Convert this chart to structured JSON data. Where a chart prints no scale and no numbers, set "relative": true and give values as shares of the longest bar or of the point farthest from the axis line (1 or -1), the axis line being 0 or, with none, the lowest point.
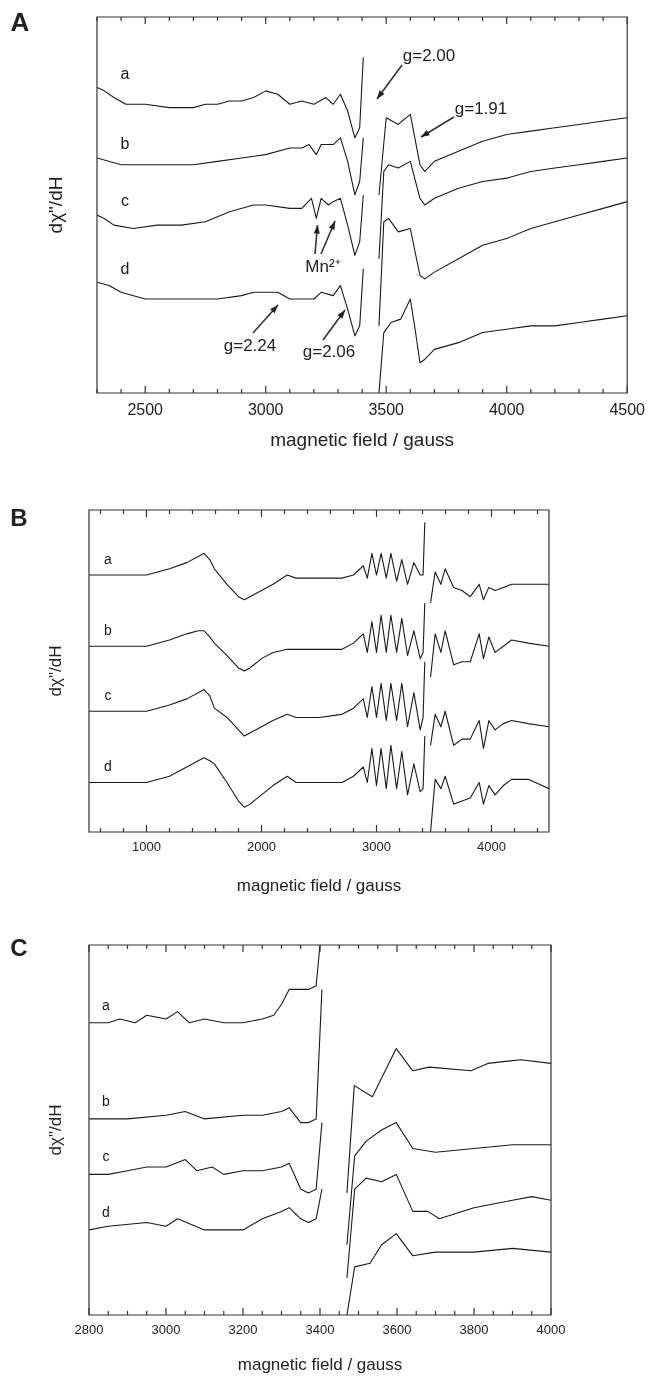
{
  "chart_data": [
    {
      "type": "line",
      "title": "A",
      "xlabel": "magnetic field / gauss",
      "ylabel": "dχ\"/dH",
      "relative": true,
      "xlim": [
        2300,
        4500
      ],
      "xticks": [
        {
          "value": 2300,
          "label": null
        },
        {
          "value": 2400,
          "label": null
        },
        2500,
        {
          "value": 2600,
          "label": null
        },
        {
          "value": 2700,
          "label": null
        },
        {
          "value": 2800,
          "label": null
        },
        {
          "value": 2900,
          "label": null
        },
        3000,
        {
          "value": 3100,
          "label": null
        },
        {
          "value": 3200,
          "label": null
        },
        {
          "value": 3300,
          "label": null
        },
        {
          "value": 3400,
          "label": null
        },
        3500,
        {
          "value": 3600,
          "label": null
        },
        {
          "value": 3700,
          "label": null
        },
        {
          "value": 3800,
          "label": null
        },
        {
          "value": 3900,
          "label": null
        },
        4000,
        {
          "value": 4100,
          "label": null
        },
        {
          "value": 4200,
          "label": null
        },
        {
          "value": 4300,
          "label": null
        },
        {
          "value": 4400,
          "label": null
        },
        4500
      ],
      "annotations": [
        "g=2.00",
        "g=1.91",
        "Mn²⁺",
        "g=2.24",
        "g=2.06"
      ],
      "series": [
        {
          "name": "a",
          "color": "#1a1a1a",
          "x": [
            2300,
            2330,
            2370,
            2420,
            2500,
            2600,
            2700,
            2750,
            2800,
            2850,
            2900,
            2950,
            3000,
            3050,
            3100,
            3150,
            3200,
            3250,
            3280,
            3310,
            3340,
            3370,
            3390,
            3405,
            3440,
            3470,
            3500,
            3550,
            3600,
            3640,
            3660,
            3700,
            3800,
            3900,
            4000,
            4100,
            4200,
            4300,
            4400,
            4500
          ],
          "values": [
            0.91,
            0.9,
            0.88,
            0.86,
            0.86,
            0.85,
            0.85,
            0.86,
            0.86,
            0.87,
            0.87,
            0.88,
            0.9,
            0.89,
            0.86,
            0.87,
            0.86,
            0.88,
            0.86,
            0.89,
            0.84,
            0.76,
            0.79,
            1.0,
            null,
            0.59,
            0.82,
            0.8,
            0.83,
            0.68,
            0.66,
            0.69,
            0.72,
            0.75,
            0.77,
            0.78,
            0.79,
            0.8,
            0.81,
            0.82
          ]
        },
        {
          "name": "b",
          "color": "#1a1a1a",
          "x": [
            2300,
            2400,
            2500,
            2600,
            2700,
            2800,
            2900,
            3000,
            3100,
            3150,
            3180,
            3210,
            3230,
            3280,
            3310,
            3340,
            3370,
            3390,
            3405,
            3440,
            3470,
            3490,
            3510,
            3550,
            3600,
            3640,
            3660,
            3700,
            3800,
            3900,
            4000,
            4100,
            4200,
            4300,
            4400,
            4500
          ],
          "values": [
            0.7,
            0.68,
            0.68,
            0.68,
            0.68,
            0.69,
            0.7,
            0.71,
            0.73,
            0.73,
            0.74,
            0.71,
            0.74,
            0.74,
            0.76,
            0.69,
            0.59,
            0.63,
            0.76,
            null,
            0.4,
            0.66,
            0.68,
            0.67,
            0.69,
            0.58,
            0.56,
            0.58,
            0.61,
            0.63,
            0.64,
            0.66,
            0.67,
            0.68,
            0.69,
            0.7
          ]
        },
        {
          "name": "c",
          "color": "#1a1a1a",
          "x": [
            2300,
            2330,
            2370,
            2450,
            2550,
            2650,
            2750,
            2850,
            2950,
            3000,
            3100,
            3150,
            3190,
            3210,
            3230,
            3260,
            3280,
            3310,
            3340,
            3370,
            3390,
            3405,
            3440,
            3470,
            3490,
            3510,
            3550,
            3600,
            3640,
            3660,
            3700,
            3800,
            3900,
            4000,
            4100,
            4200,
            4300,
            4400,
            4500
          ],
          "values": [
            0.53,
            0.52,
            0.5,
            0.49,
            0.5,
            0.5,
            0.51,
            0.54,
            0.56,
            0.56,
            0.55,
            0.55,
            0.58,
            0.52,
            0.58,
            0.56,
            0.57,
            0.58,
            0.5,
            0.41,
            0.45,
            0.59,
            null,
            0.2,
            0.51,
            0.52,
            0.48,
            0.49,
            0.35,
            0.34,
            0.36,
            0.4,
            0.44,
            0.46,
            0.49,
            0.51,
            0.53,
            0.55,
            0.57
          ]
        },
        {
          "name": "d",
          "color": "#1a1a1a",
          "x": [
            2300,
            2350,
            2400,
            2500,
            2600,
            2700,
            2800,
            2900,
            2950,
            3000,
            3050,
            3100,
            3150,
            3200,
            3230,
            3280,
            3310,
            3340,
            3370,
            3390,
            3405,
            3440,
            3470,
            3490,
            3520,
            3560,
            3600,
            3620,
            3640,
            3660,
            3700,
            3800,
            3900,
            4000,
            4100,
            4200,
            4300,
            4400,
            4500
          ],
          "values": [
            0.33,
            0.32,
            0.3,
            0.28,
            0.28,
            0.28,
            0.28,
            0.29,
            0.3,
            0.3,
            0.3,
            0.28,
            0.28,
            0.28,
            0.3,
            0.29,
            0.32,
            0.25,
            0.17,
            0.2,
            0.37,
            null,
            0,
            0.18,
            0.21,
            0.22,
            0.28,
            0.19,
            0.09,
            0.1,
            0.13,
            0.15,
            0.18,
            0.19,
            0.2,
            0.2,
            0.21,
            0.22,
            0.23
          ]
        }
      ]
    },
    {
      "type": "line",
      "title": "B",
      "xlabel": "magnetic field / gauss",
      "ylabel": "dχ\"/dH",
      "relative": true,
      "xlim": [
        500,
        4500
      ],
      "xticks": [
        {
          "value": 600,
          "label": null
        },
        {
          "value": 800,
          "label": null
        },
        1000,
        {
          "value": 1200,
          "label": null
        },
        {
          "value": 1400,
          "label": null
        },
        {
          "value": 1600,
          "label": null
        },
        {
          "value": 1800,
          "label": null
        },
        2000,
        {
          "value": 2200,
          "label": null
        },
        {
          "value": 2400,
          "label": null
        },
        {
          "value": 2600,
          "label": null
        },
        {
          "value": 2800,
          "label": null
        },
        3000,
        {
          "value": 3200,
          "label": null
        },
        {
          "value": 3400,
          "label": null
        },
        {
          "value": 3600,
          "label": null
        },
        {
          "value": 3800,
          "label": null
        },
        4000,
        {
          "value": 4200,
          "label": null
        },
        {
          "value": 4400,
          "label": null
        }
      ],
      "series": [
        {
          "name": "a",
          "color": "#1a1a1a",
          "x": [
            500,
            700,
            1000,
            1200,
            1350,
            1450,
            1500,
            1550,
            1590,
            1700,
            1800,
            1850,
            1900,
            2000,
            2100,
            2224,
            2300,
            2500,
            2700,
            2800,
            2885,
            2920,
            2960,
            3000,
            3040,
            3085,
            3125,
            3175,
            3220,
            3270,
            3325,
            3380,
            3405,
            3420,
            3440,
            3470,
            3510,
            3560,
            3597,
            3671,
            3743,
            3815,
            3893,
            3930,
            3977,
            4031,
            4103,
            4175,
            4320,
            4500
          ],
          "values": [
            0.83,
            0.83,
            0.83,
            0.85,
            0.87,
            0.89,
            0.9,
            0.88,
            0.85,
            0.8,
            0.76,
            0.75,
            0.76,
            0.78,
            0.8,
            0.83,
            0.82,
            0.82,
            0.82,
            0.83,
            0.86,
            0.82,
            0.9,
            0.83,
            0.9,
            0.82,
            0.9,
            0.81,
            0.88,
            0.8,
            0.87,
            0.83,
            0.83,
            1.0,
            null,
            0.74,
            0.84,
            0.8,
            0.85,
            0.79,
            0.78,
            0.76,
            0.8,
            0.75,
            0.79,
            0.78,
            0.79,
            0.8,
            0.8,
            0.8
          ]
        },
        {
          "name": "b",
          "color": "#1a1a1a",
          "x": [
            500,
            700,
            1000,
            1200,
            1350,
            1450,
            1500,
            1550,
            1590,
            1700,
            1800,
            1850,
            1900,
            2000,
            2100,
            2224,
            2300,
            2500,
            2700,
            2800,
            2885,
            2920,
            2960,
            3000,
            3040,
            3085,
            3125,
            3175,
            3220,
            3270,
            3325,
            3380,
            3405,
            3420,
            3440,
            3470,
            3510,
            3560,
            3597,
            3671,
            3743,
            3815,
            3893,
            3930,
            3977,
            4031,
            4103,
            4175,
            4320,
            4500
          ],
          "values": [
            0.6,
            0.6,
            0.6,
            0.62,
            0.64,
            0.65,
            0.65,
            0.63,
            0.61,
            0.57,
            0.53,
            0.52,
            0.53,
            0.56,
            0.58,
            0.59,
            0.59,
            0.59,
            0.59,
            0.61,
            0.64,
            0.58,
            0.68,
            0.58,
            0.7,
            0.58,
            0.7,
            0.58,
            0.69,
            0.57,
            0.65,
            0.56,
            0.58,
            0.74,
            null,
            0.5,
            0.64,
            0.58,
            0.65,
            0.54,
            0.55,
            0.55,
            0.64,
            0.56,
            0.63,
            0.58,
            0.6,
            0.62,
            0.61,
            0.6
          ]
        },
        {
          "name": "c",
          "color": "#1a1a1a",
          "x": [
            500,
            700,
            1000,
            1200,
            1350,
            1450,
            1500,
            1550,
            1590,
            1700,
            1800,
            1850,
            1900,
            2000,
            2100,
            2224,
            2300,
            2500,
            2700,
            2800,
            2885,
            2920,
            2960,
            3000,
            3040,
            3085,
            3125,
            3175,
            3220,
            3270,
            3325,
            3380,
            3405,
            3420,
            3440,
            3470,
            3510,
            3560,
            3597,
            3671,
            3743,
            3815,
            3893,
            3930,
            3977,
            4031,
            4103,
            4175,
            4320,
            4500
          ],
          "values": [
            0.39,
            0.39,
            0.39,
            0.41,
            0.43,
            0.45,
            0.46,
            0.44,
            0.4,
            0.37,
            0.33,
            0.31,
            0.32,
            0.34,
            0.36,
            0.38,
            0.37,
            0.37,
            0.38,
            0.4,
            0.43,
            0.37,
            0.47,
            0.37,
            0.48,
            0.36,
            0.48,
            0.36,
            0.48,
            0.34,
            0.45,
            0.33,
            0.37,
            0.55,
            null,
            0.28,
            0.38,
            0.34,
            0.39,
            0.28,
            0.3,
            0.3,
            0.36,
            0.27,
            0.36,
            0.33,
            0.35,
            0.36,
            0.35,
            0.34
          ]
        },
        {
          "name": "d",
          "color": "#1a1a1a",
          "x": [
            500,
            700,
            1000,
            1200,
            1350,
            1450,
            1500,
            1550,
            1590,
            1700,
            1800,
            1850,
            1900,
            2000,
            2100,
            2224,
            2300,
            2500,
            2700,
            2800,
            2885,
            2920,
            2960,
            3000,
            3040,
            3085,
            3125,
            3175,
            3220,
            3270,
            3325,
            3380,
            3405,
            3420,
            3440,
            3470,
            3510,
            3560,
            3597,
            3671,
            3743,
            3815,
            3893,
            3930,
            3977,
            4031,
            4103,
            4175,
            4320,
            4500
          ],
          "values": [
            0.16,
            0.16,
            0.16,
            0.18,
            0.21,
            0.23,
            0.24,
            0.23,
            0.22,
            0.16,
            0.1,
            0.08,
            0.09,
            0.12,
            0.15,
            0.18,
            0.16,
            0.16,
            0.16,
            0.18,
            0.21,
            0.16,
            0.27,
            0.15,
            0.27,
            0.14,
            0.28,
            0.14,
            0.26,
            0.12,
            0.22,
            0.13,
            0.14,
            0.31,
            null,
            0,
            0.17,
            0.14,
            0.18,
            0.09,
            0.1,
            0.11,
            0.16,
            0.09,
            0.15,
            0.12,
            0.15,
            0.17,
            0.17,
            0.14
          ]
        }
      ]
    },
    {
      "type": "line",
      "title": "C",
      "xlabel": "magnetic field / gauss",
      "ylabel": "dχ\"/dH",
      "relative": true,
      "xlim": [
        2800,
        4000
      ],
      "xticks": [
        2800,
        {
          "value": 2850,
          "label": null
        },
        {
          "value": 2900,
          "label": null
        },
        {
          "value": 2950,
          "label": null
        },
        3000,
        {
          "value": 3050,
          "label": null
        },
        {
          "value": 3100,
          "label": null
        },
        {
          "value": 3150,
          "label": null
        },
        3200,
        {
          "value": 3250,
          "label": null
        },
        {
          "value": 3300,
          "label": null
        },
        {
          "value": 3350,
          "label": null
        },
        3400,
        {
          "value": 3450,
          "label": null
        },
        {
          "value": 3500,
          "label": null
        },
        {
          "value": 3550,
          "label": null
        },
        3600,
        {
          "value": 3650,
          "label": null
        },
        {
          "value": 3700,
          "label": null
        },
        {
          "value": 3750,
          "label": null
        },
        3800,
        {
          "value": 3850,
          "label": null
        },
        {
          "value": 3900,
          "label": null
        },
        {
          "value": 3950,
          "label": null
        },
        4000
      ],
      "series": [
        {
          "name": "a",
          "color": "#1a1a1a",
          "x": [
            2800,
            2850,
            2880,
            2920,
            2950,
            3000,
            3030,
            3060,
            3100,
            3150,
            3180,
            3200,
            3250,
            3280,
            3300,
            3320,
            3350,
            3370,
            3390,
            3400,
            3440,
            3470,
            3489,
            3536,
            3598,
            3641,
            3684,
            3792,
            3836,
            3922,
            4000
          ],
          "values": [
            0.79,
            0.79,
            0.8,
            0.79,
            0.81,
            0.8,
            0.82,
            0.79,
            0.8,
            0.79,
            0.79,
            0.79,
            0.8,
            0.81,
            0.84,
            0.88,
            0.88,
            0.88,
            0.89,
            1.0,
            null,
            0.33,
            0.62,
            0.59,
            0.72,
            0.66,
            0.67,
            0.66,
            0.68,
            0.69,
            0.68
          ]
        },
        {
          "name": "b",
          "color": "#1a1a1a",
          "x": [
            2800,
            2900,
            3000,
            3050,
            3100,
            3200,
            3250,
            3300,
            3320,
            3350,
            3370,
            3390,
            3405,
            3440,
            3470,
            3490,
            3520,
            3560,
            3598,
            3641,
            3700,
            3800,
            3900,
            4000
          ],
          "values": [
            0.53,
            0.53,
            0.54,
            0.55,
            0.53,
            0.54,
            0.54,
            0.55,
            0.56,
            0.52,
            0.52,
            0.53,
            0.88,
            null,
            0.19,
            0.43,
            0.47,
            0.5,
            0.52,
            0.45,
            0.44,
            0.45,
            0.46,
            0.46
          ]
        },
        {
          "name": "c",
          "color": "#1a1a1a",
          "x": [
            2800,
            2850,
            2900,
            2950,
            3000,
            3050,
            3080,
            3120,
            3150,
            3200,
            3250,
            3300,
            3320,
            3350,
            3370,
            3390,
            3405,
            3440,
            3470,
            3490,
            3520,
            3560,
            3598,
            3641,
            3680,
            3710,
            3800,
            3850,
            3900,
            3950,
            4000
          ],
          "values": [
            0.38,
            0.38,
            0.39,
            0.4,
            0.4,
            0.42,
            0.39,
            0.4,
            0.38,
            0.39,
            0.39,
            0.4,
            0.41,
            0.34,
            0.33,
            0.34,
            0.52,
            null,
            0.1,
            0.34,
            0.37,
            0.36,
            0.38,
            0.28,
            0.28,
            0.26,
            0.29,
            0.3,
            0.31,
            0.32,
            0.31
          ]
        },
        {
          "name": "d",
          "color": "#1a1a1a",
          "x": [
            2800,
            2850,
            2950,
            3000,
            3030,
            3100,
            3150,
            3200,
            3250,
            3300,
            3320,
            3350,
            3370,
            3390,
            3405,
            3440,
            3470,
            3490,
            3530,
            3560,
            3598,
            3641,
            3700,
            3800,
            3900,
            4000
          ],
          "values": [
            0.23,
            0.24,
            0.25,
            0.24,
            0.26,
            0.23,
            0.23,
            0.23,
            0.26,
            0.28,
            0.29,
            0.26,
            0.25,
            0.26,
            0.34,
            null,
            0,
            0.13,
            0.14,
            0.19,
            0.22,
            0.16,
            0.17,
            0.17,
            0.18,
            0.17
          ]
        }
      ]
    }
  ]
}
